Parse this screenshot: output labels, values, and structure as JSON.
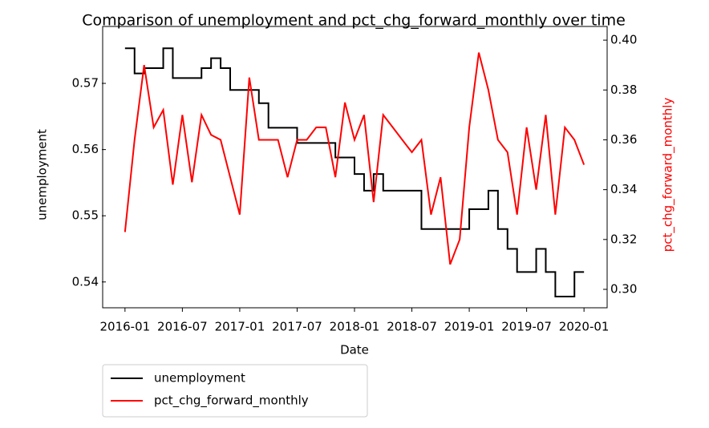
{
  "chart_data": {
    "type": "line",
    "title": "Comparison of unemployment and pct_chg_forward_monthly over time",
    "x_label": "Date",
    "y_label": "unemployment",
    "y2_label": "pct_chg_forward_monthly",
    "x": [
      "2016-01",
      "2016-02",
      "2016-03",
      "2016-04",
      "2016-05",
      "2016-06",
      "2016-07",
      "2016-08",
      "2016-09",
      "2016-10",
      "2016-11",
      "2016-12",
      "2017-01",
      "2017-02",
      "2017-03",
      "2017-04",
      "2017-05",
      "2017-06",
      "2017-07",
      "2017-08",
      "2017-09",
      "2017-10",
      "2017-11",
      "2017-12",
      "2018-01",
      "2018-02",
      "2018-03",
      "2018-04",
      "2018-05",
      "2018-06",
      "2018-07",
      "2018-08",
      "2018-09",
      "2018-10",
      "2018-11",
      "2018-12",
      "2019-01",
      "2019-02",
      "2019-03",
      "2019-04",
      "2019-05",
      "2019-06",
      "2019-07",
      "2019-08",
      "2019-09",
      "2019-10",
      "2019-11",
      "2019-12",
      "2020-01"
    ],
    "xlim": [
      "2015-11",
      "2020-03"
    ],
    "xticks": [
      "2016-01",
      "2016-07",
      "2017-01",
      "2017-07",
      "2018-01",
      "2018-07",
      "2019-01",
      "2019-07",
      "2020-01"
    ],
    "ylim": [
      0.5361,
      0.5786
    ],
    "yticks": [
      0.54,
      0.55,
      0.56,
      0.57
    ],
    "y2lim": [
      0.2926,
      0.4055
    ],
    "y2ticks": [
      {
        "value": 0.3,
        "label": "0.30"
      },
      0.32,
      0.34,
      0.36,
      0.38,
      {
        "value": 0.4,
        "label": "0.40"
      }
    ],
    "legend": "below",
    "series": [
      {
        "name": "unemployment",
        "color": "#000000",
        "step": true,
        "values": [
          0.5753,
          0.5715,
          0.5723,
          0.5723,
          0.5753,
          0.5708,
          0.5708,
          0.5708,
          0.5723,
          0.5738,
          0.5723,
          0.569,
          0.569,
          0.569,
          0.567,
          0.5633,
          0.5633,
          0.5633,
          0.561,
          0.561,
          0.561,
          0.561,
          0.5588,
          0.5588,
          0.5563,
          0.5538,
          0.5563,
          0.5538,
          0.5538,
          0.5538,
          0.5538,
          0.548,
          0.548,
          0.548,
          0.548,
          0.548,
          0.551,
          0.551,
          0.5538,
          0.548,
          0.545,
          0.5415,
          0.5415,
          0.545,
          0.5415,
          0.5378,
          0.5378,
          0.5415,
          0.5415
        ]
      },
      {
        "name": "pct_chg_forward_monthly",
        "color": "#ff0000",
        "axis": "y2",
        "values": [
          0.323,
          0.36,
          0.39,
          0.365,
          0.372,
          0.342,
          0.37,
          0.343,
          0.37,
          0.362,
          0.36,
          0.345,
          0.33,
          0.385,
          0.36,
          0.36,
          0.36,
          0.345,
          0.36,
          0.36,
          0.365,
          0.365,
          0.345,
          0.375,
          0.36,
          0.37,
          0.335,
          0.37,
          0.365,
          0.36,
          0.355,
          0.36,
          0.33,
          0.345,
          0.31,
          0.32,
          0.365,
          0.395,
          0.38,
          0.36,
          0.355,
          0.33,
          0.365,
          0.34,
          0.37,
          0.33,
          0.365,
          0.36,
          0.35
        ]
      }
    ]
  }
}
